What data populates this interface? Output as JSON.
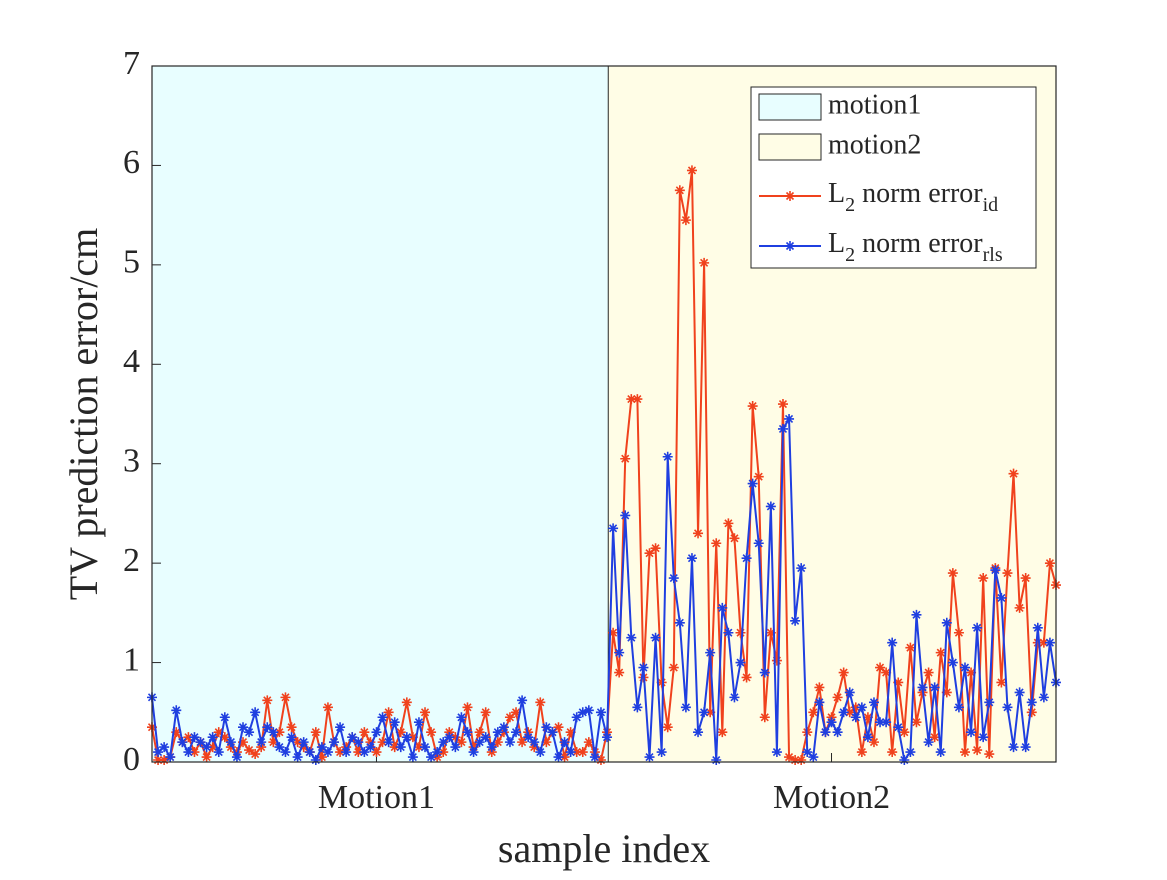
{
  "chart_data": {
    "type": "line",
    "xlabel": "sample index",
    "ylabel": "TV prediction error/cm",
    "x": [
      1,
      2,
      3,
      4,
      5,
      6,
      7,
      8,
      9,
      10,
      11,
      12,
      13,
      14,
      15,
      16,
      17,
      18,
      19,
      20,
      21,
      22,
      23,
      24,
      25,
      26,
      27,
      28,
      29,
      30,
      31,
      32,
      33,
      34,
      35,
      36,
      37,
      38,
      39,
      40,
      41,
      42,
      43,
      44,
      45,
      46,
      47,
      48,
      49,
      50,
      51,
      52,
      53,
      54,
      55,
      56,
      57,
      58,
      59,
      60,
      61,
      62,
      63,
      64,
      65,
      66,
      67,
      68,
      69,
      70,
      71,
      72,
      73,
      74,
      75,
      76,
      77,
      78,
      79,
      80,
      81,
      82,
      83,
      84,
      85,
      86,
      87,
      88,
      89,
      90,
      91,
      92,
      93,
      94,
      95,
      96,
      97,
      98,
      99,
      100,
      101,
      102,
      103,
      104,
      105,
      106,
      107,
      108,
      109,
      110,
      111,
      112,
      113,
      114,
      115,
      116,
      117,
      118,
      119,
      120,
      121,
      122,
      123,
      124,
      125,
      126,
      127,
      128,
      129,
      130,
      131,
      132,
      133,
      134,
      135,
      136,
      137,
      138,
      139,
      140,
      141,
      142,
      143,
      144,
      145,
      146,
      147,
      148,
      149,
      150
    ],
    "xlim": [
      1,
      150
    ],
    "xticks": [
      {
        "value": 38,
        "label": "Motion1"
      },
      {
        "value": 113,
        "label": "Motion2"
      }
    ],
    "ylim": [
      0,
      7
    ],
    "yticks": [
      0,
      1,
      2,
      3,
      4,
      5,
      6,
      7
    ],
    "regions": [
      {
        "name": "motion1",
        "color": "#e8feff",
        "start": 1,
        "end": 76.2
      },
      {
        "name": "motion2",
        "color": "#fffde6",
        "start": 76.2,
        "end": 150
      }
    ],
    "series": [
      {
        "name": [
          "L",
          "2",
          " norm error",
          "id"
        ],
        "color": "#f0421d",
        "values": [
          0.35,
          0.02,
          0.02,
          0.05,
          0.3,
          0.2,
          0.25,
          0.1,
          0.2,
          0.05,
          0.15,
          0.3,
          0.25,
          0.15,
          0.1,
          0.2,
          0.12,
          0.08,
          0.15,
          0.62,
          0.2,
          0.3,
          0.65,
          0.35,
          0.2,
          0.15,
          0.1,
          0.3,
          0.05,
          0.55,
          0.2,
          0.1,
          0.15,
          0.25,
          0.1,
          0.3,
          0.2,
          0.1,
          0.2,
          0.5,
          0.15,
          0.3,
          0.6,
          0.25,
          0.15,
          0.5,
          0.3,
          0.05,
          0.1,
          0.3,
          0.25,
          0.2,
          0.55,
          0.15,
          0.3,
          0.5,
          0.1,
          0.2,
          0.3,
          0.45,
          0.5,
          0.2,
          0.3,
          0.15,
          0.6,
          0.2,
          0.3,
          0.35,
          0.05,
          0.3,
          0.1,
          0.1,
          0.2,
          0.1,
          0.02,
          0.3,
          1.3,
          0.9,
          3.05,
          3.65,
          3.65,
          0.85,
          2.1,
          2.15,
          0.8,
          0.35,
          0.95,
          5.75,
          5.45,
          5.95,
          2.3,
          5.02,
          0.5,
          2.2,
          0.3,
          2.4,
          2.25,
          1.3,
          0.85,
          3.58,
          2.87,
          0.45,
          1.3,
          1.02,
          3.6,
          0.05,
          0.02,
          0.02,
          0.3,
          0.5,
          0.75,
          0.3,
          0.45,
          0.65,
          0.9,
          0.5,
          0.55,
          0.1,
          0.45,
          0.2,
          0.95,
          0.9,
          0.1,
          0.8,
          0.3,
          1.15,
          0.4,
          0.7,
          0.9,
          0.25,
          1.1,
          0.7,
          1.9,
          1.3,
          0.1,
          0.9,
          0.12,
          1.85,
          0.08,
          1.95,
          0.8,
          1.9,
          2.9,
          1.55,
          1.85,
          0.5,
          1.2,
          1.2,
          2.0,
          1.78
        ]
      },
      {
        "name": [
          "L",
          "2",
          " norm error",
          "rls"
        ],
        "color": "#1f3fe0",
        "values": [
          0.65,
          0.1,
          0.15,
          0.05,
          0.52,
          0.2,
          0.1,
          0.25,
          0.2,
          0.15,
          0.25,
          0.1,
          0.45,
          0.2,
          0.05,
          0.35,
          0.3,
          0.5,
          0.2,
          0.35,
          0.3,
          0.15,
          0.1,
          0.25,
          0.05,
          0.2,
          0.1,
          0.02,
          0.15,
          0.1,
          0.2,
          0.35,
          0.1,
          0.25,
          0.2,
          0.1,
          0.15,
          0.3,
          0.45,
          0.2,
          0.4,
          0.15,
          0.25,
          0.05,
          0.4,
          0.15,
          0.05,
          0.1,
          0.2,
          0.25,
          0.15,
          0.45,
          0.3,
          0.1,
          0.2,
          0.25,
          0.15,
          0.3,
          0.35,
          0.2,
          0.3,
          0.62,
          0.25,
          0.2,
          0.1,
          0.35,
          0.3,
          0.05,
          0.2,
          0.1,
          0.45,
          0.5,
          0.52,
          0.05,
          0.5,
          0.25,
          2.35,
          1.1,
          2.48,
          1.25,
          0.55,
          0.95,
          0.05,
          1.25,
          0.1,
          3.07,
          1.85,
          1.4,
          0.55,
          2.05,
          0.3,
          0.5,
          1.1,
          0.02,
          1.55,
          1.3,
          0.65,
          1.0,
          2.05,
          2.8,
          2.2,
          0.9,
          2.57,
          0.1,
          3.35,
          3.45,
          1.42,
          1.95,
          0.1,
          0.05,
          0.6,
          0.3,
          0.4,
          0.3,
          0.5,
          0.7,
          0.45,
          0.55,
          0.25,
          0.6,
          0.4,
          0.4,
          1.2,
          0.35,
          0.02,
          0.1,
          1.48,
          0.75,
          0.2,
          0.75,
          0.1,
          1.4,
          1.0,
          0.55,
          0.95,
          0.3,
          1.35,
          0.25,
          0.6,
          1.93,
          1.65,
          0.55,
          0.15,
          0.7,
          0.15,
          0.6,
          1.35,
          0.65,
          1.2,
          0.8
        ]
      }
    ]
  }
}
